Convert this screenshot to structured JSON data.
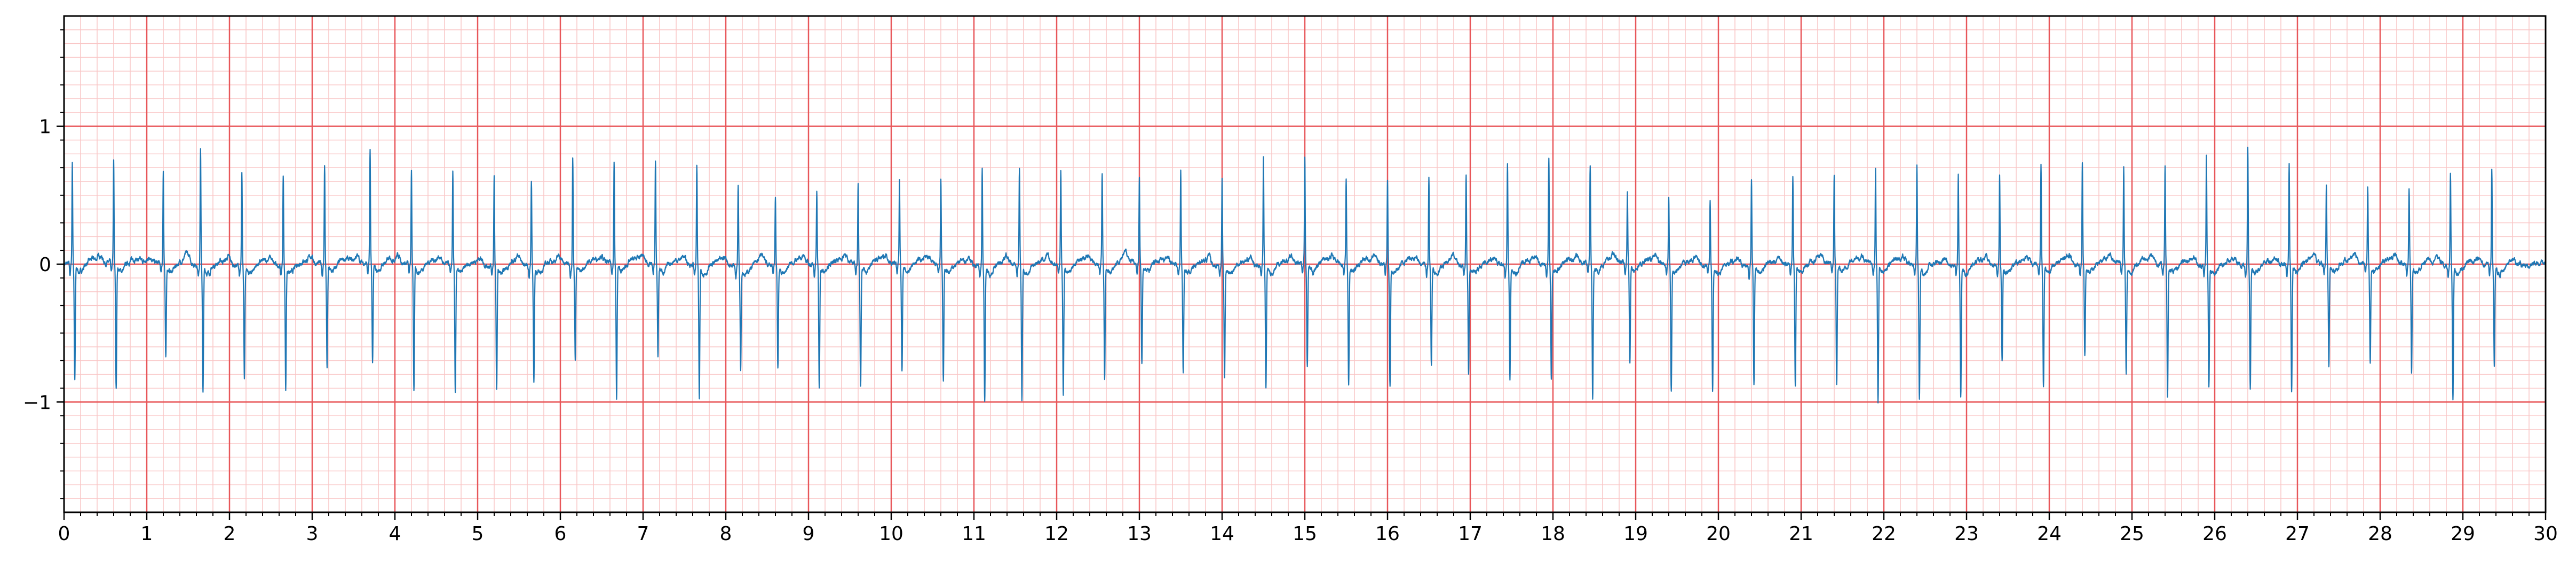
{
  "chart_data": {
    "type": "line",
    "title": "",
    "xlabel": "",
    "ylabel": "",
    "xlim": [
      0,
      30
    ],
    "ylim": [
      -1.8,
      1.8
    ],
    "x_major_ticks": [
      0,
      1,
      2,
      3,
      4,
      5,
      6,
      7,
      8,
      9,
      10,
      11,
      12,
      13,
      14,
      15,
      16,
      17,
      18,
      19,
      20,
      21,
      22,
      23,
      24,
      25,
      26,
      27,
      28,
      29,
      30
    ],
    "x_tick_labels": [
      "0",
      "1",
      "2",
      "3",
      "4",
      "5",
      "6",
      "7",
      "8",
      "9",
      "10",
      "11",
      "12",
      "13",
      "14",
      "15",
      "16",
      "17",
      "18",
      "19",
      "20",
      "21",
      "22",
      "23",
      "24",
      "25",
      "26",
      "27",
      "28",
      "29",
      "30"
    ],
    "y_major_ticks": [
      -1,
      0,
      1
    ],
    "y_tick_labels": [
      "−1",
      "0",
      "1"
    ],
    "minor_grid_step_x": 0.2,
    "minor_grid_step_y": 0.1,
    "grid": true,
    "colors": {
      "major_grid": "#e8575a",
      "minor_grid": "#f9c6c6",
      "trace": "#1f77b4",
      "axes": "#000000"
    },
    "series": [
      {
        "beat_times": [
          0.1,
          0.6,
          1.2,
          1.65,
          2.15,
          2.65,
          3.15,
          3.7,
          4.2,
          4.7,
          5.2,
          5.65,
          6.15,
          6.65,
          7.15,
          7.65,
          8.15,
          8.6,
          9.1,
          9.6,
          10.1,
          10.6,
          11.1,
          11.55,
          12.05,
          12.55,
          13.0,
          13.5,
          14.0,
          14.5,
          15.0,
          15.5,
          16.0,
          16.5,
          16.95,
          17.45,
          17.95,
          18.45,
          18.9,
          19.4,
          19.9,
          20.4,
          20.9,
          21.4,
          21.9,
          22.4,
          22.9,
          23.4,
          23.9,
          24.4,
          24.9,
          25.4,
          25.9,
          26.4,
          26.9,
          27.35,
          27.85,
          28.35,
          28.85,
          29.35
        ],
        "r_peaks": [
          0.75,
          0.73,
          0.68,
          0.85,
          0.65,
          0.65,
          0.72,
          0.82,
          0.68,
          0.68,
          0.66,
          0.62,
          0.78,
          0.74,
          0.74,
          0.72,
          0.6,
          0.5,
          0.52,
          0.6,
          0.6,
          0.62,
          0.72,
          0.72,
          0.68,
          0.67,
          0.62,
          0.7,
          0.64,
          0.79,
          0.77,
          0.62,
          0.62,
          0.64,
          0.67,
          0.74,
          0.78,
          0.72,
          0.52,
          0.47,
          0.47,
          0.62,
          0.64,
          0.64,
          0.72,
          0.74,
          0.66,
          0.66,
          0.72,
          0.72,
          0.72,
          0.72,
          0.78,
          0.85,
          0.72,
          0.58,
          0.55,
          0.53,
          0.65,
          0.7
        ],
        "s_troughs": [
          -0.82,
          -0.9,
          -0.68,
          -0.92,
          -0.78,
          -0.88,
          -0.75,
          -0.7,
          -0.92,
          -0.92,
          -0.9,
          -0.84,
          -0.67,
          -0.98,
          -0.66,
          -0.97,
          -0.72,
          -0.72,
          -0.88,
          -0.87,
          -0.75,
          -0.82,
          -0.97,
          -0.97,
          -0.93,
          -0.84,
          -0.72,
          -0.77,
          -0.8,
          -0.87,
          -0.73,
          -0.87,
          -0.86,
          -0.69,
          -0.75,
          -0.83,
          -0.8,
          -0.97,
          -0.7,
          -0.91,
          -0.88,
          -0.85,
          -0.84,
          -0.87,
          -0.97,
          -0.97,
          -0.93,
          -0.67,
          -0.88,
          -0.66,
          -0.78,
          -0.95,
          -0.87,
          -0.86,
          -0.92,
          -0.73,
          -0.71,
          -0.76,
          -0.95,
          -0.72
        ]
      }
    ]
  }
}
